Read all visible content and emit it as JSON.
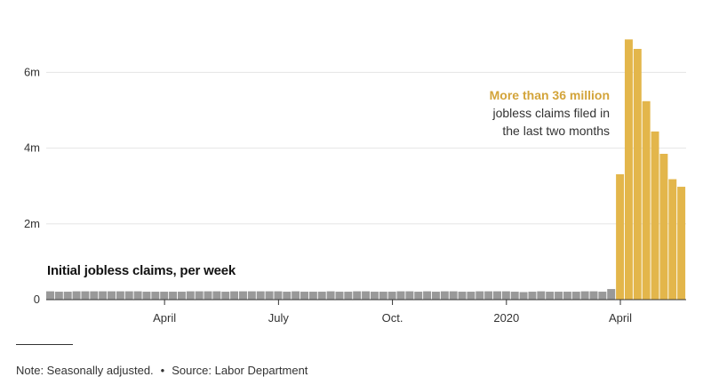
{
  "chart_data": {
    "type": "bar",
    "title": "Initial jobless claims, per week",
    "y_unit": "millions",
    "ylim": [
      0,
      7
    ],
    "y_ticks": [
      {
        "value": 0,
        "label": "0"
      },
      {
        "value": 2,
        "label": "2m"
      },
      {
        "value": 4,
        "label": "4m"
      },
      {
        "value": 6,
        "label": "6m"
      }
    ],
    "x_ticks": [
      {
        "week_index": 13,
        "label": "April"
      },
      {
        "week_index": 26,
        "label": "July"
      },
      {
        "week_index": 39,
        "label": "Oct."
      },
      {
        "week_index": 52,
        "label": "2020"
      },
      {
        "week_index": 65,
        "label": "April"
      }
    ],
    "grid": true,
    "values": [
      0.22,
      0.21,
      0.21,
      0.22,
      0.22,
      0.22,
      0.22,
      0.22,
      0.22,
      0.22,
      0.22,
      0.21,
      0.21,
      0.21,
      0.21,
      0.21,
      0.22,
      0.22,
      0.22,
      0.22,
      0.21,
      0.22,
      0.22,
      0.22,
      0.22,
      0.22,
      0.22,
      0.21,
      0.22,
      0.21,
      0.21,
      0.21,
      0.22,
      0.21,
      0.21,
      0.22,
      0.22,
      0.21,
      0.21,
      0.21,
      0.22,
      0.22,
      0.21,
      0.22,
      0.21,
      0.22,
      0.22,
      0.21,
      0.21,
      0.22,
      0.22,
      0.22,
      0.22,
      0.21,
      0.2,
      0.21,
      0.22,
      0.21,
      0.21,
      0.21,
      0.21,
      0.22,
      0.22,
      0.21,
      0.28,
      3.31,
      6.87,
      6.62,
      5.24,
      4.44,
      3.85,
      3.18,
      2.98
    ],
    "highlight_from_index": 65,
    "colors": {
      "normal": "#999999",
      "highlight": "#e3b64b",
      "axis": "#333333",
      "grid": "#e5e5e5"
    }
  },
  "annotation": {
    "highlight": "More than 36 million",
    "line1": "jobless claims filed in",
    "line2": "the last two months",
    "highlight_color": "#d3a43a"
  },
  "footer": {
    "note": "Note: Seasonally adjusted.",
    "bullet": "•",
    "source": "Source: Labor Department"
  }
}
